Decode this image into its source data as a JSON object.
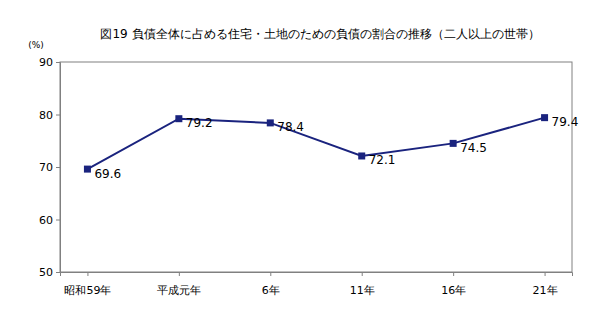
{
  "chart_data": {
    "type": "line",
    "title": "図19 負債全体に占める住宅・土地のための負債の割合の推移（二人以上の世帯）",
    "y_label": "(%)",
    "categories": [
      "昭和59年",
      "平成元年",
      "6年",
      "11年",
      "16年",
      "21年"
    ],
    "values": [
      69.6,
      79.2,
      78.4,
      72.1,
      74.5,
      79.4
    ],
    "color": "#1a237e",
    "marker": "square",
    "ylim": [
      50,
      90
    ],
    "yticks": [
      50,
      60,
      70,
      80,
      90
    ],
    "grid": false,
    "data_labels": true
  }
}
